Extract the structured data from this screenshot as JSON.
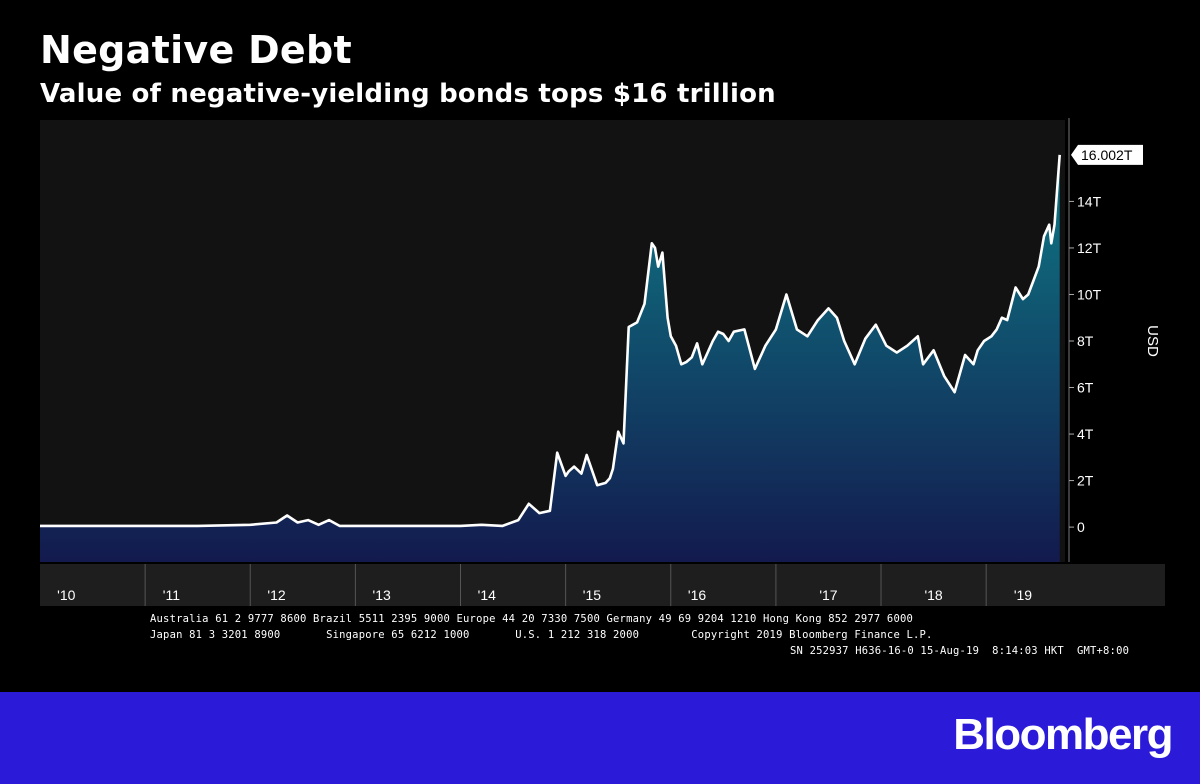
{
  "title": "Negative Debt",
  "subtitle": "Value of negative-yielding bonds tops $16 trillion",
  "chart_data": {
    "type": "area",
    "ylabel": "USD",
    "ylim": [
      -1.5,
      17.5
    ],
    "yticks": [
      0,
      2,
      4,
      6,
      8,
      10,
      12,
      14
    ],
    "ytick_labels": [
      "0",
      "2T",
      "4T",
      "6T",
      "8T",
      "10T",
      "12T",
      "14T"
    ],
    "xlim": [
      2010.0,
      2019.75
    ],
    "x_tick_labels": [
      {
        "label": "'10",
        "x": 2010.25
      },
      {
        "label": "'11",
        "x": 2011.25
      },
      {
        "label": "'12",
        "x": 2012.25
      },
      {
        "label": "'13",
        "x": 2013.25
      },
      {
        "label": "'14",
        "x": 2014.25
      },
      {
        "label": "'15",
        "x": 2015.25
      },
      {
        "label": "'16",
        "x": 2016.25
      },
      {
        "label": "'17",
        "x": 2017.5
      },
      {
        "label": "'18",
        "x": 2018.5
      },
      {
        "label": "'19",
        "x": 2019.35
      }
    ],
    "x_dividers": [
      2011.0,
      2012.0,
      2013.0,
      2014.0,
      2015.0,
      2016.0,
      2017.0,
      2018.0,
      2019.0
    ],
    "last_value_label": "16.002T",
    "grid": false,
    "series": [
      {
        "x": [
          2010.0,
          2011.0,
          2011.5,
          2012.0,
          2012.25,
          2012.35,
          2012.45,
          2012.55,
          2012.65,
          2012.75,
          2012.85,
          2012.95,
          2013.05,
          2013.2,
          2013.5,
          2014.0,
          2014.2,
          2014.4,
          2014.55,
          2014.65,
          2014.75,
          2014.85,
          2014.92,
          2015.0,
          2015.03,
          2015.08,
          2015.15,
          2015.2,
          2015.3,
          2015.38,
          2015.42,
          2015.45,
          2015.5,
          2015.55,
          2015.6,
          2015.68,
          2015.75,
          2015.82,
          2015.85,
          2015.88,
          2015.92,
          2015.97,
          2016.0,
          2016.05,
          2016.1,
          2016.15,
          2016.2,
          2016.25,
          2016.3,
          2016.35,
          2016.4,
          2016.45,
          2016.5,
          2016.55,
          2016.6,
          2016.7,
          2016.8,
          2016.9,
          2017.0,
          2017.1,
          2017.2,
          2017.3,
          2017.4,
          2017.5,
          2017.58,
          2017.65,
          2017.75,
          2017.85,
          2017.95,
          2018.05,
          2018.15,
          2018.25,
          2018.35,
          2018.4,
          2018.5,
          2018.6,
          2018.7,
          2018.8,
          2018.88,
          2018.92,
          2018.98,
          2019.05,
          2019.1,
          2019.15,
          2019.2,
          2019.28,
          2019.35,
          2019.4,
          2019.45,
          2019.5,
          2019.55,
          2019.6,
          2019.62,
          2019.65,
          2019.7
        ],
        "values": [
          0.05,
          0.05,
          0.05,
          0.1,
          0.2,
          0.5,
          0.2,
          0.3,
          0.1,
          0.3,
          0.05,
          0.05,
          0.05,
          0.05,
          0.05,
          0.05,
          0.1,
          0.05,
          0.3,
          1.0,
          0.6,
          0.7,
          3.2,
          2.2,
          2.4,
          2.6,
          2.3,
          3.1,
          1.8,
          1.9,
          2.1,
          2.5,
          4.1,
          3.6,
          8.6,
          8.8,
          9.6,
          12.2,
          12.0,
          11.2,
          11.8,
          9.0,
          8.2,
          7.8,
          7.0,
          7.1,
          7.3,
          7.9,
          7.0,
          7.5,
          8.0,
          8.4,
          8.3,
          8.0,
          8.4,
          8.5,
          6.8,
          7.8,
          8.5,
          10.0,
          8.5,
          8.2,
          8.9,
          9.4,
          9.0,
          8.0,
          7.0,
          8.1,
          8.7,
          7.8,
          7.5,
          7.8,
          8.2,
          7.0,
          7.6,
          6.5,
          5.8,
          7.4,
          7.0,
          7.6,
          8.0,
          8.2,
          8.5,
          9.0,
          8.9,
          10.3,
          9.8,
          10.0,
          10.6,
          11.2,
          12.5,
          13.0,
          12.2,
          13.0,
          16.0
        ]
      }
    ]
  },
  "footer": {
    "line1": "Australia 61 2 9777 8600 Brazil 5511 2395 9000 Europe 44 20 7330 7500 Germany 49 69 9204 1210 Hong Kong 852 2977 6000",
    "line2": "Japan 81 3 3201 8900       Singapore 65 6212 1000       U.S. 1 212 318 2000        Copyright 2019 Bloomberg Finance L.P.",
    "line3": "SN 252937 H636-16-0 15-Aug-19  8:14:03 HKT  GMT+8:00"
  },
  "brand": {
    "logo_text": "Bloomberg",
    "banner_color": "#2b1bd8"
  },
  "colors": {
    "line": "#ffffff",
    "area_top": "#0e7a86",
    "area_bottom": "#131a4e",
    "plot_bg": "#121212"
  }
}
